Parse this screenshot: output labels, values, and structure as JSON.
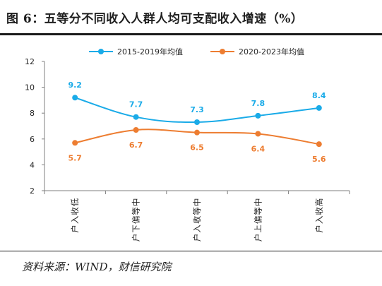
{
  "title": "图 6：五等分不同收入人群人均可支配收入增速（%）",
  "source": "资料来源：WIND，财信研究院",
  "colors": {
    "series1": "#1aabe8",
    "series2": "#ed7d31",
    "axis": "#7f7f7f",
    "text": "#262626"
  },
  "chart_data": {
    "type": "line",
    "title": "",
    "xlabel": "",
    "ylabel": "",
    "categories": [
      "低收入户",
      "中等偏下户",
      "中等收入户",
      "中等偏上户",
      "高收入户"
    ],
    "ylim": [
      2,
      12
    ],
    "yticks": [
      2,
      4,
      6,
      8,
      10,
      12
    ],
    "grid": false,
    "legend": "top-center",
    "smooth": true,
    "series": [
      {
        "name": "2015-2019年均值",
        "values": [
          9.2,
          7.7,
          7.3,
          7.8,
          8.4
        ],
        "labels": [
          "9.2",
          "7.7",
          "7.3",
          "7.8",
          "8.4"
        ],
        "label_position": "above"
      },
      {
        "name": "2020-2023年均值",
        "values": [
          5.7,
          6.7,
          6.5,
          6.4,
          5.6
        ],
        "labels": [
          "5.7",
          "6.7",
          "6.5",
          "6.4",
          "5.6"
        ],
        "label_position": "below"
      }
    ]
  }
}
